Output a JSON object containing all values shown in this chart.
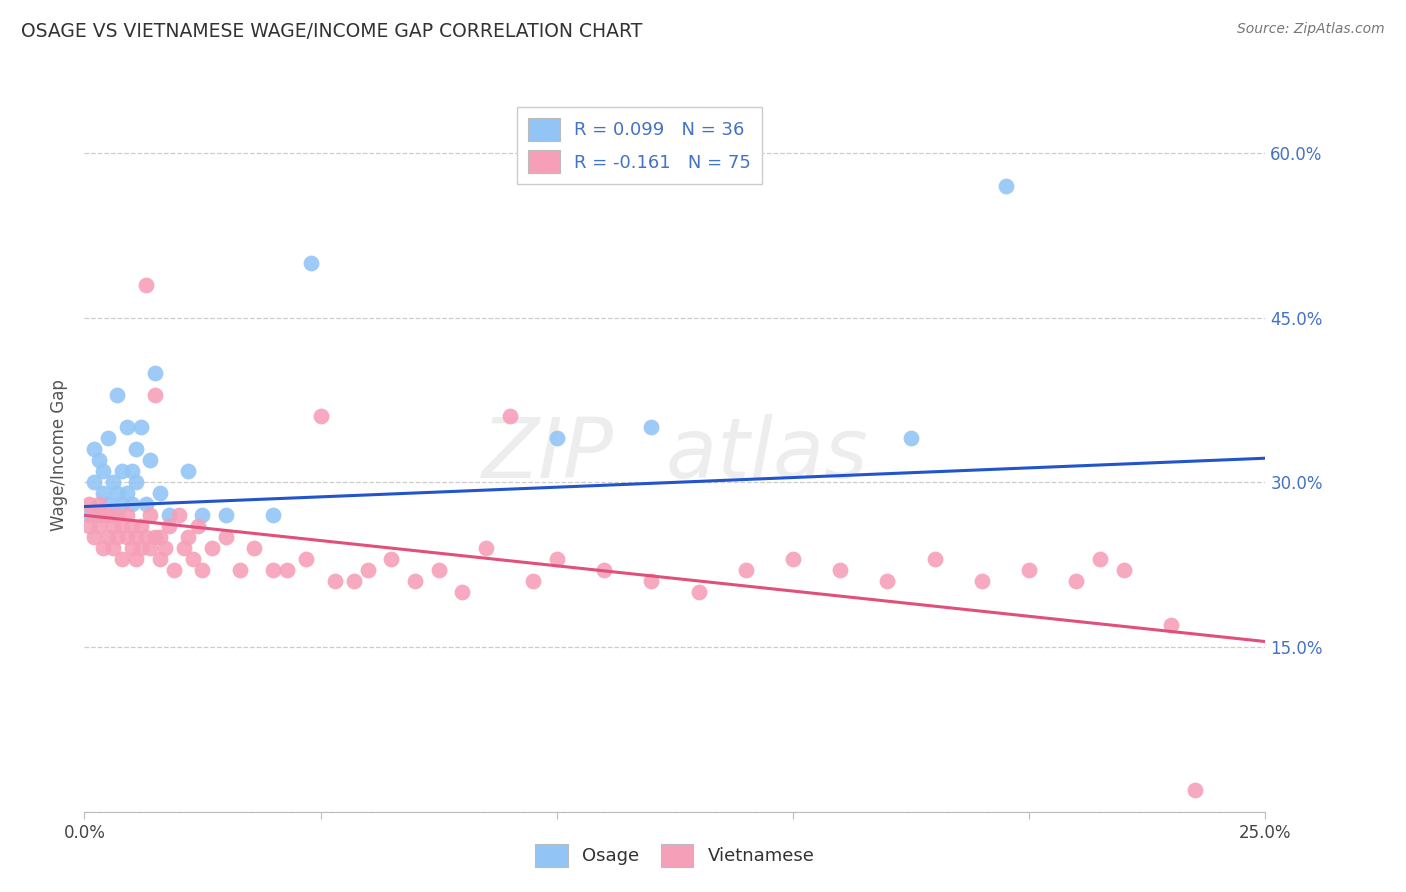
{
  "title": "OSAGE VS VIETNAMESE WAGE/INCOME GAP CORRELATION CHART",
  "source": "Source: ZipAtlas.com",
  "ylabel_label": "Wage/Income Gap",
  "x_min": 0.0,
  "x_max": 0.25,
  "y_min": 0.0,
  "y_max": 0.65,
  "x_ticks": [
    0.0,
    0.05,
    0.1,
    0.15,
    0.2,
    0.25
  ],
  "x_tick_labels": [
    "0.0%",
    "",
    "",
    "",
    "",
    "25.0%"
  ],
  "y_ticks": [
    0.0,
    0.15,
    0.3,
    0.45,
    0.6
  ],
  "y_tick_labels_right": [
    "",
    "15.0%",
    "30.0%",
    "45.0%",
    "60.0%"
  ],
  "osage_color": "#92C5F5",
  "vietnamese_color": "#F5A0B8",
  "osage_R": 0.099,
  "osage_N": 36,
  "vietnamese_R": -0.161,
  "vietnamese_N": 75,
  "osage_line_color": "#2255CC",
  "vietnamese_line_color": "#E0507A",
  "label_color": "#4472C4",
  "title_color": "#333333",
  "source_color": "#777777",
  "background_color": "#FFFFFF",
  "grid_color": "#CCCCCC",
  "watermark_color": "#DDDDDD",
  "osage_x": [
    0.001,
    0.002,
    0.002,
    0.003,
    0.003,
    0.004,
    0.004,
    0.005,
    0.005,
    0.006,
    0.006,
    0.007,
    0.007,
    0.008,
    0.008,
    0.009,
    0.009,
    0.01,
    0.01,
    0.011,
    0.011,
    0.012,
    0.013,
    0.014,
    0.015,
    0.016,
    0.018,
    0.022,
    0.025,
    0.03,
    0.04,
    0.048,
    0.1,
    0.12,
    0.175,
    0.195
  ],
  "osage_y": [
    0.27,
    0.3,
    0.33,
    0.27,
    0.32,
    0.29,
    0.31,
    0.28,
    0.34,
    0.27,
    0.3,
    0.29,
    0.38,
    0.31,
    0.28,
    0.29,
    0.35,
    0.28,
    0.31,
    0.3,
    0.33,
    0.35,
    0.28,
    0.32,
    0.4,
    0.29,
    0.27,
    0.31,
    0.27,
    0.27,
    0.27,
    0.5,
    0.34,
    0.35,
    0.34,
    0.57
  ],
  "vietnamese_x": [
    0.001,
    0.001,
    0.002,
    0.002,
    0.003,
    0.003,
    0.004,
    0.004,
    0.005,
    0.005,
    0.006,
    0.006,
    0.007,
    0.007,
    0.008,
    0.008,
    0.009,
    0.009,
    0.01,
    0.01,
    0.011,
    0.011,
    0.012,
    0.012,
    0.013,
    0.013,
    0.014,
    0.014,
    0.015,
    0.015,
    0.016,
    0.016,
    0.017,
    0.018,
    0.019,
    0.02,
    0.021,
    0.022,
    0.023,
    0.024,
    0.025,
    0.027,
    0.03,
    0.033,
    0.036,
    0.04,
    0.043,
    0.047,
    0.05,
    0.053,
    0.057,
    0.06,
    0.065,
    0.07,
    0.075,
    0.08,
    0.085,
    0.09,
    0.095,
    0.1,
    0.11,
    0.12,
    0.13,
    0.14,
    0.15,
    0.16,
    0.17,
    0.18,
    0.19,
    0.2,
    0.21,
    0.215,
    0.22,
    0.23,
    0.235
  ],
  "vietnamese_y": [
    0.26,
    0.28,
    0.25,
    0.27,
    0.26,
    0.28,
    0.24,
    0.27,
    0.25,
    0.27,
    0.24,
    0.26,
    0.25,
    0.27,
    0.23,
    0.26,
    0.25,
    0.27,
    0.24,
    0.26,
    0.23,
    0.25,
    0.24,
    0.26,
    0.25,
    0.48,
    0.27,
    0.24,
    0.25,
    0.38,
    0.23,
    0.25,
    0.24,
    0.26,
    0.22,
    0.27,
    0.24,
    0.25,
    0.23,
    0.26,
    0.22,
    0.24,
    0.25,
    0.22,
    0.24,
    0.22,
    0.22,
    0.23,
    0.36,
    0.21,
    0.21,
    0.22,
    0.23,
    0.21,
    0.22,
    0.2,
    0.24,
    0.36,
    0.21,
    0.23,
    0.22,
    0.21,
    0.2,
    0.22,
    0.23,
    0.22,
    0.21,
    0.23,
    0.21,
    0.22,
    0.21,
    0.23,
    0.22,
    0.17,
    0.02
  ]
}
